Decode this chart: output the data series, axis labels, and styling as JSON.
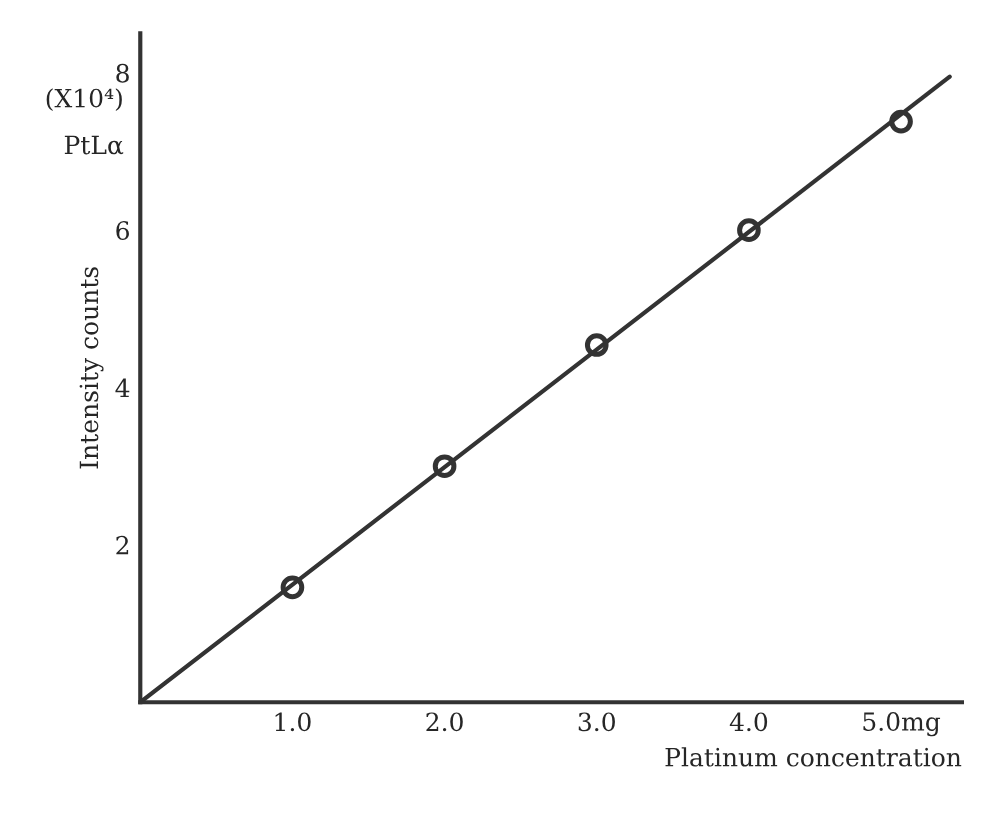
{
  "chart_data": {
    "type": "scatter",
    "xlabel": "Platinum concentration",
    "ylabel": "Intensity counts",
    "annotations": [
      "(X10⁴)",
      "PtLα"
    ],
    "series": [
      {
        "color": "#333333",
        "marker": "circle",
        "x": [
          1.0,
          2.0,
          3.0,
          4.0,
          5.0
        ],
        "values": [
          1.46,
          3.0,
          4.54,
          6.0,
          7.38
        ]
      },
      {
        "type": "line",
        "color": "#333333",
        "marker": "none",
        "line_style": "solid",
        "x": [
          0,
          5.32
        ],
        "values": [
          0,
          7.95
        ]
      }
    ],
    "grid": false,
    "legend": false,
    "xlim": [
      0,
      5.4
    ],
    "ylim": [
      0,
      8.5
    ],
    "xticks": [
      {
        "value": 1.0,
        "label": "1.0"
      },
      {
        "value": 2.0,
        "label": "2.0"
      },
      {
        "value": 3.0,
        "label": "3.0"
      },
      {
        "value": 4.0,
        "label": "4.0"
      },
      {
        "value": 5.0,
        "label": "5.0mg"
      }
    ],
    "yticks": [
      2,
      4,
      6,
      8
    ]
  }
}
